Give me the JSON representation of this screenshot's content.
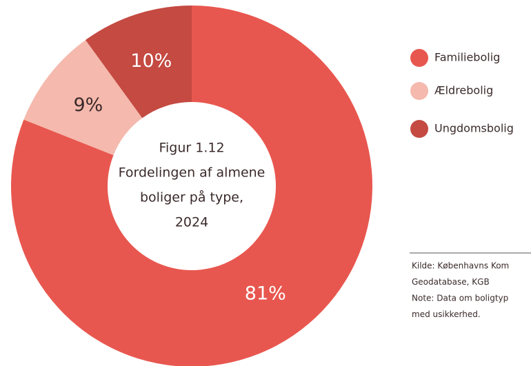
{
  "chart_data": {
    "type": "donut",
    "title": [
      "Figur 1.12",
      "Fordelingen af almene",
      "boliger på type,",
      "2024"
    ],
    "categories": [
      "Familiebolig",
      "Ældrebolig",
      "Ungdomsbolig"
    ],
    "values": [
      81,
      9,
      10
    ],
    "value_labels": [
      "81%",
      "9%",
      "10%"
    ],
    "colors": [
      "#e8574f",
      "#f5b9ad",
      "#c44a42"
    ],
    "label_colors": [
      "#ffffff",
      "#3a2a2a",
      "#ffffff"
    ],
    "legend": "right",
    "notes": [
      "Kilde: Københavns Kom",
      "Geodatabase, KGB",
      "Note: Data om boligtyp",
      "med usikkerhed."
    ]
  }
}
